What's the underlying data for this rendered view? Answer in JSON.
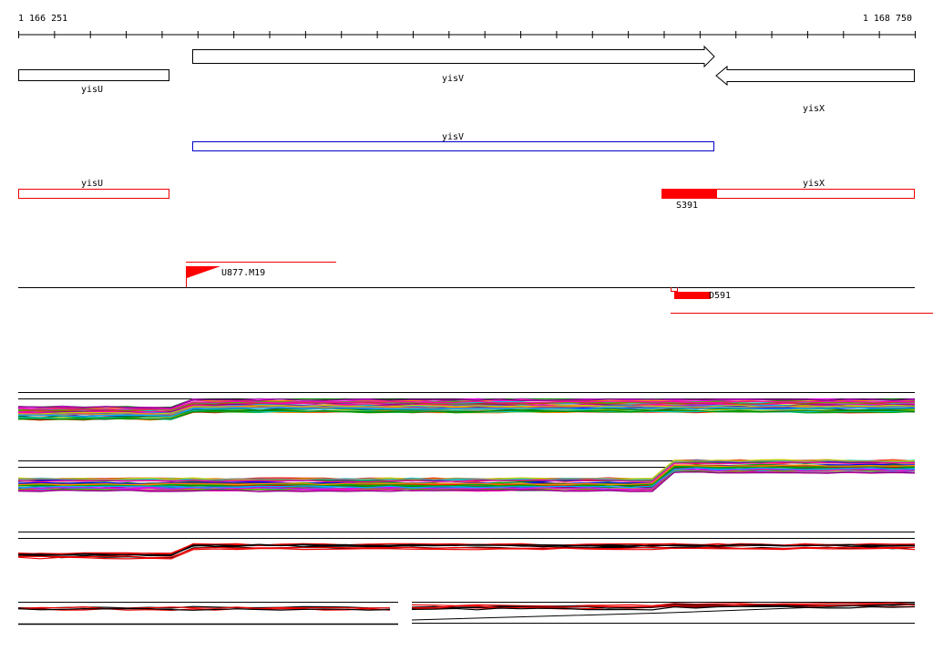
{
  "ruler": {
    "start": "1 166 251",
    "end": "1 168 750"
  },
  "genes": {
    "yisU": "yisU",
    "yisV": "yisV",
    "yisX": "yisX"
  },
  "transcripts": {
    "yisV": "yisV"
  },
  "features": {
    "yisU": "yisU",
    "yisX": "yisX",
    "S391": "S391"
  },
  "signals": {
    "U877": "U877.M19",
    "D591": "D591"
  }
}
